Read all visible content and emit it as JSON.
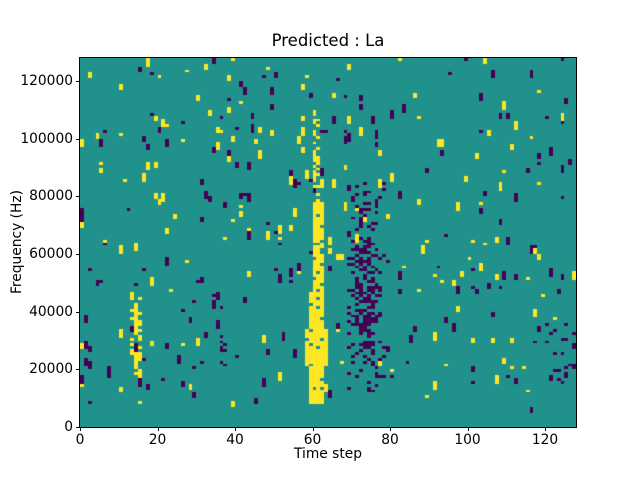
{
  "figure": {
    "background": "#ffffff"
  },
  "chart_data": {
    "type": "heatmap",
    "title": "Predicted : La",
    "xlabel": "Time step",
    "ylabel": "Frequency (Hz)",
    "x_range": [
      0,
      128
    ],
    "y_range_hz": [
      0,
      128000
    ],
    "x_ticks": [
      0,
      20,
      40,
      60,
      80,
      100,
      120
    ],
    "y_ticks": [
      0,
      20000,
      40000,
      60000,
      80000,
      100000,
      120000
    ],
    "grid": false,
    "legend": "none",
    "colormap": "viridis",
    "value_colors": {
      "min": "#440154",
      "mid": "#21918c",
      "max": "#fde725"
    },
    "background_value": "mid",
    "cells": {
      "nx": 128,
      "ny": 128,
      "freq_bin_hz": 1000
    },
    "noise": {
      "seed": 7,
      "p_max": 0.012,
      "p_min": 0.011,
      "run_min": 1,
      "run_max": 3,
      "quiet_bottom_rows": 7,
      "quiet_factor": 0.15
    },
    "features": [
      {
        "name": "yellow-column-base",
        "t": [
          59,
          63
        ],
        "f_khz": [
          8,
          21
        ],
        "value": "max",
        "p": 0.97
      },
      {
        "name": "yellow-column-wide",
        "t": [
          58,
          64
        ],
        "f_khz": [
          21,
          34
        ],
        "value": "max",
        "p": 0.85
      },
      {
        "name": "yellow-column-mid",
        "t": [
          59,
          63
        ],
        "f_khz": [
          34,
          47
        ],
        "value": "max",
        "p": 0.9
      },
      {
        "name": "yellow-column-upper",
        "t": [
          60,
          63
        ],
        "f_khz": [
          47,
          78
        ],
        "value": "max",
        "p": 0.8
      },
      {
        "name": "yellow-column-top",
        "t": [
          60,
          62
        ],
        "f_khz": [
          78,
          110
        ],
        "value": "max",
        "p": 0.45
      },
      {
        "name": "purple-cluster",
        "t": [
          69,
          79
        ],
        "f_khz": [
          12,
          85
        ],
        "value": "min",
        "p": 0.16
      },
      {
        "name": "purple-cluster-core",
        "t": [
          70,
          76
        ],
        "f_khz": [
          25,
          62
        ],
        "value": "min",
        "p": 0.4
      },
      {
        "name": "yellow-streak-left",
        "t": [
          13,
          16
        ],
        "f_khz": [
          17,
          46
        ],
        "value": "max",
        "p": 0.5
      },
      {
        "name": "purple-streak-left",
        "t": [
          36,
          38
        ],
        "f_khz": [
          20,
          45
        ],
        "value": "min",
        "p": 0.3
      },
      {
        "name": "purple-bottom-right",
        "t": [
          119,
          128
        ],
        "f_khz": [
          14,
          36
        ],
        "value": "min",
        "p": 0.1
      }
    ]
  }
}
